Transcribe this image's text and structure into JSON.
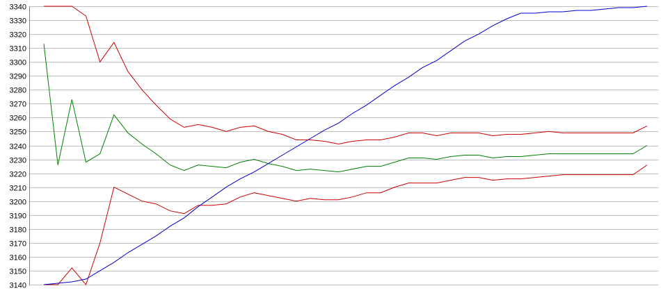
{
  "chart_data": {
    "type": "line",
    "title": "",
    "xlabel": "",
    "ylabel": "",
    "ylim": [
      3140,
      3340
    ],
    "yticks": [
      3140,
      3150,
      3160,
      3170,
      3180,
      3190,
      3200,
      3210,
      3220,
      3230,
      3240,
      3250,
      3260,
      3270,
      3280,
      3290,
      3300,
      3310,
      3320,
      3330,
      3340
    ],
    "x": [
      0,
      1,
      2,
      3,
      4,
      5,
      6,
      7,
      8,
      9,
      10,
      11,
      12,
      13,
      14,
      15,
      16,
      17,
      18,
      19,
      20,
      21,
      22,
      23,
      24,
      25,
      26,
      27,
      28,
      29,
      30,
      31,
      32,
      33,
      34,
      35,
      36,
      37,
      38,
      39,
      40,
      41,
      42,
      43
    ],
    "xlim": [
      0,
      43
    ],
    "grid": true,
    "legend": "none",
    "series": [
      {
        "color": "#cc0000",
        "values": [
          3340,
          3340,
          3340,
          3333,
          3300,
          3314,
          3293,
          3280,
          3269,
          3259,
          3253,
          3255,
          3253,
          3250,
          3253,
          3254,
          3250,
          3248,
          3244,
          3244,
          3243,
          3241,
          3243,
          3244,
          3244,
          3246,
          3249,
          3249,
          3247,
          3249,
          3249,
          3249,
          3247,
          3248,
          3248,
          3249,
          3250,
          3249,
          3249,
          3249,
          3249,
          3249,
          3249,
          3254
        ]
      },
      {
        "color": "#008000",
        "values": [
          3313,
          3226,
          3273,
          3228,
          3234,
          3262,
          3249,
          3241,
          3234,
          3226,
          3222,
          3226,
          3225,
          3224,
          3228,
          3230,
          3227,
          3225,
          3222,
          3223,
          3222,
          3221,
          3223,
          3225,
          3225,
          3228,
          3231,
          3231,
          3230,
          3232,
          3233,
          3233,
          3231,
          3232,
          3232,
          3233,
          3234,
          3234,
          3234,
          3234,
          3234,
          3234,
          3234,
          3240
        ]
      },
      {
        "color": "#cc0000",
        "values": [
          3140,
          3140,
          3152,
          3140,
          3170,
          3210,
          3205,
          3200,
          3198,
          3193,
          3191,
          3197,
          3197,
          3198,
          3203,
          3206,
          3204,
          3202,
          3200,
          3202,
          3201,
          3201,
          3203,
          3206,
          3206,
          3210,
          3213,
          3213,
          3213,
          3215,
          3217,
          3217,
          3215,
          3216,
          3216,
          3217,
          3218,
          3219,
          3219,
          3219,
          3219,
          3219,
          3219,
          3226
        ]
      },
      {
        "color": "#0000cc",
        "values": [
          3140,
          3141,
          3142,
          3144,
          3150,
          3156,
          3163,
          3169,
          3175,
          3182,
          3188,
          3196,
          3203,
          3210,
          3216,
          3221,
          3227,
          3233,
          3239,
          3245,
          3251,
          3256,
          3263,
          3269,
          3276,
          3283,
          3289,
          3296,
          3301,
          3308,
          3315,
          3320,
          3326,
          3331,
          3335,
          3335,
          3336,
          3336,
          3337,
          3337,
          3338,
          3339,
          3339,
          3340
        ]
      }
    ]
  }
}
